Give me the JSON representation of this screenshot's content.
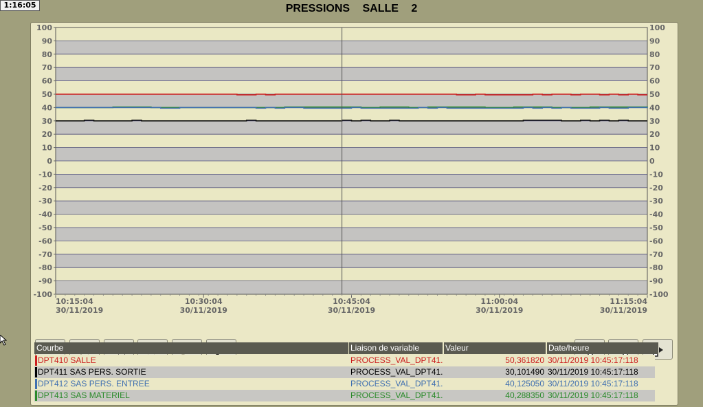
{
  "clock": "1:16:05",
  "title": "PRESSIONS   SALLE 2",
  "colors": {
    "background": "#a09f7c",
    "band_light": "#eae8c4",
    "band_dark": "#c4c3c1",
    "series": [
      "#cc1e1e",
      "#111111",
      "#3f6fb0",
      "#2a8a2a"
    ]
  },
  "chart_data": {
    "type": "line",
    "title": "PRESSIONS   SALLE 2",
    "ylim": [
      -100,
      100
    ],
    "y_ticks": [
      "100",
      "90",
      "80",
      "70",
      "60",
      "50",
      "40",
      "30",
      "20",
      "10",
      "0",
      "-10",
      "-20",
      "-30",
      "-40",
      "-50",
      "-60",
      "-70",
      "-80",
      "-90",
      "-100"
    ],
    "x_ticks": [
      {
        "time": "10:15:04",
        "date": "30/11/2019"
      },
      {
        "time": "10:30:04",
        "date": "30/11/2019"
      },
      {
        "time": "10:45:04",
        "date": "30/11/2019"
      },
      {
        "time": "11:00:04",
        "date": "30/11/2019"
      },
      {
        "time": "11:15:04",
        "date": "30/11/2019"
      }
    ],
    "x_range_minutes": [
      0,
      62
    ],
    "ruler_minute": 30,
    "grid": true,
    "series": [
      {
        "name": "DPT410 SALLE",
        "color": "#cc1e1e",
        "x": [
          0,
          13,
          19,
          21,
          22,
          23,
          41,
          42,
          44,
          45,
          50,
          51,
          52,
          54,
          55,
          57,
          58,
          59,
          60,
          61,
          62
        ],
        "y": [
          50,
          50,
          49.5,
          50,
          49.5,
          50,
          50,
          49.5,
          50,
          49.5,
          50,
          49.5,
          50,
          49.5,
          50,
          49.5,
          50,
          49.5,
          50,
          49.5,
          49.5
        ]
      },
      {
        "name": "DPT413 SAS MATERIEL",
        "color": "#2a8a2a",
        "x": [
          0,
          4,
          6,
          10,
          20,
          24,
          32,
          34,
          37,
          39,
          45,
          48,
          52,
          56,
          62
        ],
        "y": [
          40,
          40,
          40.4,
          40,
          40,
          40.4,
          40,
          40.4,
          40,
          40.4,
          40,
          40.4,
          40,
          40.4,
          40
        ]
      },
      {
        "name": "DPT412 SAS PERS. ENTREE",
        "color": "#3f6fb0",
        "x": [
          0,
          11,
          13,
          20,
          21,
          22,
          23,
          24,
          26,
          31,
          32,
          38,
          39,
          40,
          41,
          49,
          50,
          51,
          52,
          53,
          54,
          57,
          58,
          60,
          62
        ],
        "y": [
          40,
          39.5,
          40,
          40,
          39.5,
          40,
          39.5,
          40,
          39.5,
          40,
          39.5,
          40,
          39.5,
          40,
          39.5,
          40,
          39.5,
          40,
          39.5,
          40,
          39.5,
          40,
          39.5,
          40,
          39.5
        ]
      },
      {
        "name": "DPT411 SAS PERS. SORTIE",
        "color": "#111111",
        "x": [
          0,
          3,
          4,
          8,
          9,
          13,
          20,
          21,
          30,
          31,
          32,
          33,
          35,
          36,
          47,
          49,
          50,
          52,
          53,
          55,
          56,
          57,
          58,
          59,
          60,
          61,
          62
        ],
        "y": [
          30,
          30.5,
          30,
          30.5,
          30,
          30,
          30.5,
          30,
          30.5,
          30,
          30.5,
          30,
          30.5,
          30,
          30,
          30.5,
          30.5,
          30.5,
          30,
          30.5,
          30,
          30.5,
          30,
          30.5,
          30,
          30,
          30
        ]
      }
    ]
  },
  "toolbar": {
    "left": [
      "stop-icon",
      "first-page-icon",
      "rewind-icon",
      "fast-forward-icon",
      "zoom-in-icon",
      "zoom-out-icon"
    ],
    "right": [
      "ruler-icon",
      "ruler-left-icon",
      "ruler-right-icon"
    ]
  },
  "legend": {
    "headers": {
      "curve": "Courbe",
      "link": "Liaison de variable",
      "value": "Valeur",
      "datetime": "Date/heure"
    },
    "rows": [
      {
        "curve": "DPT410 SALLE",
        "link": "PROCESS_VAL_DPT41...",
        "value": "50,361820",
        "datetime": "30/11/2019 10:45:17:118",
        "color": "#cc1e1e",
        "bg": "#ebe8c6"
      },
      {
        "curve": "DPT411 SAS PERS. SORTIE",
        "link": "PROCESS_VAL_DPT41...",
        "value": "30,101490",
        "datetime": "30/11/2019 10:45:17:118",
        "color": "#000000",
        "bg": "#c8c7c3"
      },
      {
        "curve": "DPT412 SAS PERS. ENTREE",
        "link": "PROCESS_VAL_DPT41...",
        "value": "40,125050",
        "datetime": "30/11/2019 10:45:17:118",
        "color": "#3f6fb0",
        "bg": "#ebe8c6"
      },
      {
        "curve": "DPT413 SAS MATERIEL",
        "link": "PROCESS_VAL_DPT41...",
        "value": "40,288350",
        "datetime": "30/11/2019 10:45:17:118",
        "color": "#2a8a2a",
        "bg": "#c8c7c3"
      }
    ]
  }
}
